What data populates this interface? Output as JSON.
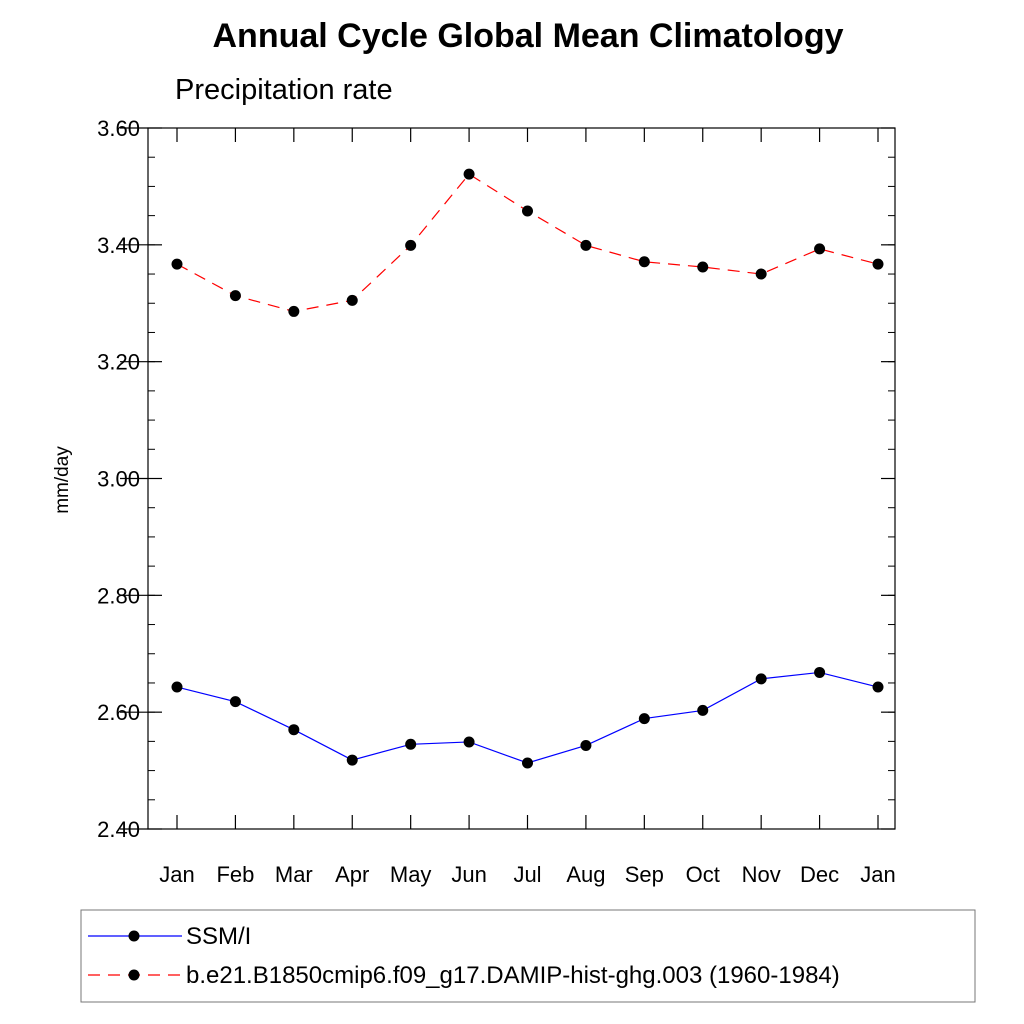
{
  "chart_data": {
    "type": "line",
    "title": "Annual Cycle Global Mean Climatology",
    "subtitle": "Precipitation rate",
    "ylabel": "mm/day",
    "xlabel": "",
    "categories": [
      "Jan",
      "Feb",
      "Mar",
      "Apr",
      "May",
      "Jun",
      "Jul",
      "Aug",
      "Sep",
      "Oct",
      "Nov",
      "Dec",
      "Jan"
    ],
    "ylim": [
      2.4,
      3.6
    ],
    "yticks": [
      "2.40",
      "2.60",
      "2.80",
      "3.00",
      "3.20",
      "3.40",
      "3.60"
    ],
    "grid": false,
    "legend_position": "bottom",
    "series": [
      {
        "name": "SSM/I",
        "color": "#0000ff",
        "line_style": "solid",
        "marker": "filled-circle",
        "values": [
          2.643,
          2.618,
          2.57,
          2.518,
          2.545,
          2.549,
          2.513,
          2.543,
          2.589,
          2.603,
          2.657,
          2.668,
          2.643
        ]
      },
      {
        "name": "b.e21.B1850cmip6.f09_g17.DAMIP-hist-ghg.003 (1960-1984)",
        "color": "#ff0000",
        "line_style": "dashed",
        "marker": "filled-circle",
        "values": [
          3.367,
          3.313,
          3.286,
          3.305,
          3.399,
          3.521,
          3.458,
          3.399,
          3.371,
          3.362,
          3.35,
          3.393,
          3.367
        ]
      }
    ]
  }
}
